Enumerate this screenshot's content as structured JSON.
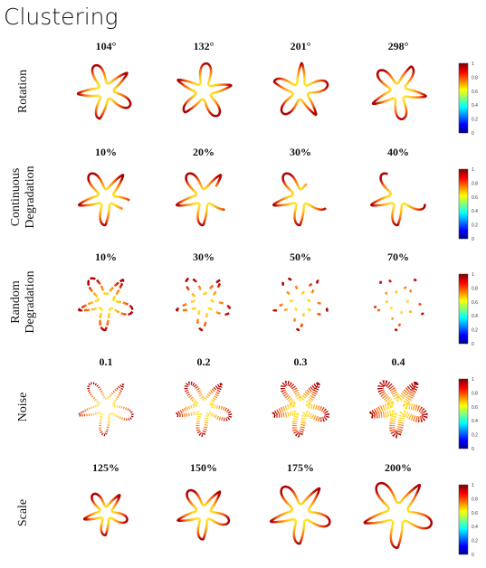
{
  "title": "Clustering",
  "colorbar_ticks": [
    "0",
    "0.2",
    "0.4",
    "0.6",
    "0.8",
    "1"
  ],
  "rows": [
    {
      "label_lines": [
        "Rotation"
      ],
      "columns": [
        "104°",
        "132°",
        "201°",
        "298°"
      ]
    },
    {
      "label_lines": [
        "Continuous",
        "Degradation"
      ],
      "columns": [
        "10%",
        "20%",
        "30%",
        "40%"
      ]
    },
    {
      "label_lines": [
        "Random",
        "Degradation"
      ],
      "columns": [
        "10%",
        "30%",
        "50%",
        "70%"
      ]
    },
    {
      "label_lines": [
        "Noise"
      ],
      "columns": [
        "0.1",
        "0.2",
        "0.3",
        "0.4"
      ]
    },
    {
      "label_lines": [
        "Scale"
      ],
      "columns": [
        "125%",
        "150%",
        "175%",
        "200%"
      ]
    }
  ]
}
